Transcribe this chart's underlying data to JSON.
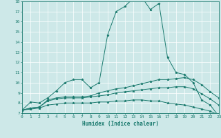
{
  "xlabel": "Humidex (Indice chaleur)",
  "background_color": "#cde8e8",
  "grid_color": "#ffffff",
  "line_color": "#1a7a6e",
  "xmin": 0,
  "xmax": 23,
  "ymin": 7,
  "ymax": 18,
  "series": [
    {
      "x": [
        0,
        1,
        2,
        3,
        4,
        5,
        6,
        7,
        8,
        9,
        10,
        11,
        12,
        13,
        14,
        15,
        16,
        17,
        18,
        19,
        20,
        21,
        22,
        23
      ],
      "y": [
        7.3,
        8.1,
        8.0,
        8.5,
        9.2,
        10.0,
        10.3,
        10.3,
        9.5,
        10.0,
        14.7,
        17.0,
        17.5,
        18.3,
        18.4,
        17.2,
        17.8,
        12.5,
        11.0,
        10.8,
        10.0,
        8.3,
        7.8,
        6.7
      ]
    },
    {
      "x": [
        0,
        1,
        2,
        3,
        4,
        5,
        6,
        7,
        8,
        9,
        10,
        11,
        12,
        13,
        14,
        15,
        16,
        17,
        18,
        19,
        20,
        21,
        22,
        23
      ],
      "y": [
        7.3,
        7.5,
        7.6,
        8.3,
        8.5,
        8.6,
        8.6,
        8.6,
        8.7,
        9.0,
        9.2,
        9.4,
        9.5,
        9.7,
        9.9,
        10.1,
        10.3,
        10.3,
        10.4,
        10.5,
        10.3,
        9.8,
        9.1,
        8.5
      ]
    },
    {
      "x": [
        0,
        1,
        2,
        3,
        4,
        5,
        6,
        7,
        8,
        9,
        10,
        11,
        12,
        13,
        14,
        15,
        16,
        17,
        18,
        19,
        20,
        21,
        22,
        23
      ],
      "y": [
        7.3,
        7.5,
        7.6,
        8.2,
        8.4,
        8.5,
        8.5,
        8.5,
        8.6,
        8.7,
        8.8,
        9.0,
        9.1,
        9.2,
        9.3,
        9.4,
        9.5,
        9.5,
        9.6,
        9.6,
        9.4,
        8.9,
        8.4,
        7.8
      ]
    },
    {
      "x": [
        0,
        1,
        2,
        3,
        4,
        5,
        6,
        7,
        8,
        9,
        10,
        11,
        12,
        13,
        14,
        15,
        16,
        17,
        18,
        19,
        20,
        21,
        22,
        23
      ],
      "y": [
        7.3,
        7.4,
        7.5,
        7.8,
        7.9,
        8.0,
        8.0,
        8.0,
        8.0,
        8.1,
        8.1,
        8.2,
        8.2,
        8.3,
        8.3,
        8.2,
        8.2,
        8.0,
        7.9,
        7.8,
        7.6,
        7.4,
        7.2,
        6.8
      ]
    }
  ]
}
